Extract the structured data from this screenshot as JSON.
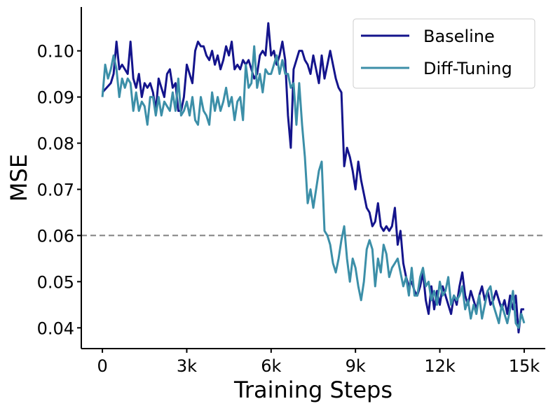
{
  "chart_data": {
    "type": "line",
    "title": "",
    "xlabel": "Training Steps",
    "ylabel": "MSE",
    "xlim": [
      -750,
      15750
    ],
    "ylim": [
      0.0355,
      0.1095
    ],
    "x_ticks": [
      {
        "value": 0,
        "label": "0"
      },
      {
        "value": 3000,
        "label": "3k"
      },
      {
        "value": 6000,
        "label": "6k"
      },
      {
        "value": 9000,
        "label": "9k"
      },
      {
        "value": 12000,
        "label": "12k"
      },
      {
        "value": 15000,
        "label": "15k"
      }
    ],
    "y_ticks": [
      {
        "value": 0.04,
        "label": "0.04"
      },
      {
        "value": 0.05,
        "label": "0.05"
      },
      {
        "value": 0.06,
        "label": "0.06"
      },
      {
        "value": 0.07,
        "label": "0.07"
      },
      {
        "value": 0.08,
        "label": "0.08"
      },
      {
        "value": 0.09,
        "label": "0.09"
      },
      {
        "value": 0.1,
        "label": "0.10"
      }
    ],
    "reference_line": {
      "y": 0.06,
      "style": "dashed",
      "color": "#808080"
    },
    "grid": false,
    "legend_position": "top-right",
    "series": [
      {
        "name": "Baseline",
        "color": "#14148c",
        "points": [
          [
            0,
            0.091
          ],
          [
            150,
            0.092
          ],
          [
            300,
            0.093
          ],
          [
            400,
            0.095
          ],
          [
            500,
            0.102
          ],
          [
            600,
            0.096
          ],
          [
            700,
            0.097
          ],
          [
            800,
            0.096
          ],
          [
            900,
            0.095
          ],
          [
            1000,
            0.102
          ],
          [
            1100,
            0.094
          ],
          [
            1200,
            0.092
          ],
          [
            1300,
            0.095
          ],
          [
            1400,
            0.09
          ],
          [
            1500,
            0.093
          ],
          [
            1600,
            0.092
          ],
          [
            1700,
            0.093
          ],
          [
            1800,
            0.091
          ],
          [
            1900,
            0.087
          ],
          [
            2000,
            0.094
          ],
          [
            2100,
            0.092
          ],
          [
            2200,
            0.09
          ],
          [
            2300,
            0.095
          ],
          [
            2400,
            0.096
          ],
          [
            2500,
            0.092
          ],
          [
            2600,
            0.093
          ],
          [
            2700,
            0.087
          ],
          [
            2800,
            0.087
          ],
          [
            2900,
            0.09
          ],
          [
            3000,
            0.097
          ],
          [
            3100,
            0.095
          ],
          [
            3200,
            0.093
          ],
          [
            3300,
            0.1
          ],
          [
            3400,
            0.102
          ],
          [
            3500,
            0.101
          ],
          [
            3600,
            0.101
          ],
          [
            3700,
            0.099
          ],
          [
            3800,
            0.098
          ],
          [
            3900,
            0.1
          ],
          [
            4000,
            0.097
          ],
          [
            4100,
            0.099
          ],
          [
            4200,
            0.096
          ],
          [
            4300,
            0.098
          ],
          [
            4400,
            0.101
          ],
          [
            4500,
            0.099
          ],
          [
            4600,
            0.102
          ],
          [
            4700,
            0.096
          ],
          [
            4800,
            0.097
          ],
          [
            4900,
            0.096
          ],
          [
            5000,
            0.098
          ],
          [
            5100,
            0.097
          ],
          [
            5200,
            0.098
          ],
          [
            5300,
            0.096
          ],
          [
            5400,
            0.094
          ],
          [
            5500,
            0.095
          ],
          [
            5600,
            0.099
          ],
          [
            5700,
            0.1
          ],
          [
            5800,
            0.099
          ],
          [
            5900,
            0.106
          ],
          [
            6000,
            0.099
          ],
          [
            6100,
            0.1
          ],
          [
            6200,
            0.097
          ],
          [
            6300,
            0.099
          ],
          [
            6400,
            0.102
          ],
          [
            6500,
            0.098
          ],
          [
            6600,
            0.086
          ],
          [
            6700,
            0.079
          ],
          [
            6800,
            0.096
          ],
          [
            6900,
            0.098
          ],
          [
            7000,
            0.1
          ],
          [
            7100,
            0.1
          ],
          [
            7200,
            0.098
          ],
          [
            7300,
            0.097
          ],
          [
            7400,
            0.095
          ],
          [
            7500,
            0.099
          ],
          [
            7600,
            0.096
          ],
          [
            7700,
            0.093
          ],
          [
            7800,
            0.099
          ],
          [
            7900,
            0.094
          ],
          [
            8000,
            0.097
          ],
          [
            8100,
            0.1
          ],
          [
            8200,
            0.097
          ],
          [
            8300,
            0.094
          ],
          [
            8400,
            0.092
          ],
          [
            8500,
            0.091
          ],
          [
            8600,
            0.075
          ],
          [
            8700,
            0.079
          ],
          [
            8800,
            0.077
          ],
          [
            8900,
            0.074
          ],
          [
            9000,
            0.07
          ],
          [
            9100,
            0.076
          ],
          [
            9200,
            0.072
          ],
          [
            9300,
            0.069
          ],
          [
            9400,
            0.066
          ],
          [
            9500,
            0.065
          ],
          [
            9600,
            0.062
          ],
          [
            9700,
            0.063
          ],
          [
            9800,
            0.067
          ],
          [
            9900,
            0.062
          ],
          [
            10000,
            0.061
          ],
          [
            10100,
            0.062
          ],
          [
            10200,
            0.061
          ],
          [
            10300,
            0.062
          ],
          [
            10400,
            0.066
          ],
          [
            10500,
            0.058
          ],
          [
            10600,
            0.061
          ],
          [
            10700,
            0.054
          ],
          [
            10800,
            0.051
          ],
          [
            10900,
            0.049
          ],
          [
            11000,
            0.05
          ],
          [
            11100,
            0.048
          ],
          [
            11200,
            0.047
          ],
          [
            11300,
            0.049
          ],
          [
            11400,
            0.052
          ],
          [
            11500,
            0.046
          ],
          [
            11600,
            0.043
          ],
          [
            11700,
            0.049
          ],
          [
            11800,
            0.044
          ],
          [
            11900,
            0.048
          ],
          [
            12000,
            0.045
          ],
          [
            12100,
            0.049
          ],
          [
            12200,
            0.047
          ],
          [
            12300,
            0.045
          ],
          [
            12400,
            0.043
          ],
          [
            12500,
            0.047
          ],
          [
            12600,
            0.045
          ],
          [
            12700,
            0.049
          ],
          [
            12800,
            0.052
          ],
          [
            12900,
            0.047
          ],
          [
            13000,
            0.045
          ],
          [
            13100,
            0.048
          ],
          [
            13200,
            0.046
          ],
          [
            13300,
            0.044
          ],
          [
            13400,
            0.047
          ],
          [
            13500,
            0.049
          ],
          [
            13600,
            0.046
          ],
          [
            13700,
            0.048
          ],
          [
            13800,
            0.045
          ],
          [
            13900,
            0.046
          ],
          [
            14000,
            0.048
          ],
          [
            14100,
            0.046
          ],
          [
            14200,
            0.044
          ],
          [
            14300,
            0.046
          ],
          [
            14400,
            0.043
          ],
          [
            14500,
            0.047
          ],
          [
            14600,
            0.044
          ],
          [
            14700,
            0.047
          ],
          [
            14800,
            0.039
          ],
          [
            14900,
            0.044
          ],
          [
            15000,
            0.044
          ]
        ]
      },
      {
        "name": "Diff-Tuning",
        "color": "#3c8fa8",
        "points": [
          [
            0,
            0.09
          ],
          [
            100,
            0.097
          ],
          [
            200,
            0.094
          ],
          [
            300,
            0.096
          ],
          [
            400,
            0.099
          ],
          [
            500,
            0.096
          ],
          [
            600,
            0.09
          ],
          [
            700,
            0.094
          ],
          [
            800,
            0.092
          ],
          [
            900,
            0.094
          ],
          [
            1000,
            0.093
          ],
          [
            1100,
            0.087
          ],
          [
            1200,
            0.091
          ],
          [
            1300,
            0.087
          ],
          [
            1400,
            0.089
          ],
          [
            1500,
            0.088
          ],
          [
            1600,
            0.084
          ],
          [
            1700,
            0.09
          ],
          [
            1800,
            0.09
          ],
          [
            1900,
            0.086
          ],
          [
            2000,
            0.09
          ],
          [
            2100,
            0.086
          ],
          [
            2200,
            0.089
          ],
          [
            2300,
            0.088
          ],
          [
            2400,
            0.087
          ],
          [
            2500,
            0.091
          ],
          [
            2600,
            0.087
          ],
          [
            2700,
            0.094
          ],
          [
            2800,
            0.086
          ],
          [
            2900,
            0.087
          ],
          [
            3000,
            0.089
          ],
          [
            3100,
            0.086
          ],
          [
            3200,
            0.09
          ],
          [
            3300,
            0.085
          ],
          [
            3400,
            0.084
          ],
          [
            3500,
            0.09
          ],
          [
            3600,
            0.087
          ],
          [
            3700,
            0.086
          ],
          [
            3800,
            0.084
          ],
          [
            3900,
            0.091
          ],
          [
            4000,
            0.087
          ],
          [
            4100,
            0.09
          ],
          [
            4200,
            0.087
          ],
          [
            4300,
            0.089
          ],
          [
            4400,
            0.092
          ],
          [
            4500,
            0.088
          ],
          [
            4600,
            0.09
          ],
          [
            4700,
            0.085
          ],
          [
            4800,
            0.089
          ],
          [
            4900,
            0.09
          ],
          [
            5000,
            0.085
          ],
          [
            5100,
            0.097
          ],
          [
            5200,
            0.092
          ],
          [
            5300,
            0.093
          ],
          [
            5400,
            0.101
          ],
          [
            5500,
            0.092
          ],
          [
            5600,
            0.095
          ],
          [
            5700,
            0.091
          ],
          [
            5800,
            0.096
          ],
          [
            5900,
            0.095
          ],
          [
            6000,
            0.095
          ],
          [
            6100,
            0.097
          ],
          [
            6200,
            0.099
          ],
          [
            6300,
            0.095
          ],
          [
            6400,
            0.098
          ],
          [
            6500,
            0.095
          ],
          [
            6600,
            0.095
          ],
          [
            6700,
            0.092
          ],
          [
            6800,
            0.093
          ],
          [
            6900,
            0.084
          ],
          [
            7000,
            0.093
          ],
          [
            7100,
            0.084
          ],
          [
            7200,
            0.077
          ],
          [
            7300,
            0.067
          ],
          [
            7400,
            0.07
          ],
          [
            7500,
            0.066
          ],
          [
            7600,
            0.07
          ],
          [
            7700,
            0.074
          ],
          [
            7800,
            0.076
          ],
          [
            7900,
            0.061
          ],
          [
            8000,
            0.06
          ],
          [
            8100,
            0.058
          ],
          [
            8200,
            0.054
          ],
          [
            8300,
            0.052
          ],
          [
            8400,
            0.055
          ],
          [
            8500,
            0.059
          ],
          [
            8600,
            0.062
          ],
          [
            8700,
            0.055
          ],
          [
            8800,
            0.05
          ],
          [
            8900,
            0.055
          ],
          [
            9000,
            0.053
          ],
          [
            9100,
            0.049
          ],
          [
            9200,
            0.046
          ],
          [
            9300,
            0.05
          ],
          [
            9400,
            0.057
          ],
          [
            9500,
            0.059
          ],
          [
            9600,
            0.057
          ],
          [
            9700,
            0.049
          ],
          [
            9800,
            0.055
          ],
          [
            9900,
            0.052
          ],
          [
            10000,
            0.058
          ],
          [
            10100,
            0.056
          ],
          [
            10200,
            0.051
          ],
          [
            10300,
            0.053
          ],
          [
            10400,
            0.054
          ],
          [
            10500,
            0.055
          ],
          [
            10600,
            0.052
          ],
          [
            10700,
            0.049
          ],
          [
            10800,
            0.051
          ],
          [
            10900,
            0.047
          ],
          [
            11000,
            0.053
          ],
          [
            11100,
            0.047
          ],
          [
            11200,
            0.047
          ],
          [
            11300,
            0.051
          ],
          [
            11400,
            0.053
          ],
          [
            11500,
            0.049
          ],
          [
            11600,
            0.05
          ],
          [
            11700,
            0.046
          ],
          [
            11800,
            0.048
          ],
          [
            11900,
            0.045
          ],
          [
            12000,
            0.05
          ],
          [
            12100,
            0.047
          ],
          [
            12200,
            0.048
          ],
          [
            12300,
            0.051
          ],
          [
            12400,
            0.045
          ],
          [
            12500,
            0.047
          ],
          [
            12600,
            0.046
          ],
          [
            12700,
            0.047
          ],
          [
            12800,
            0.049
          ],
          [
            12900,
            0.044
          ],
          [
            13000,
            0.046
          ],
          [
            13100,
            0.042
          ],
          [
            13200,
            0.045
          ],
          [
            13300,
            0.043
          ],
          [
            13400,
            0.047
          ],
          [
            13500,
            0.042
          ],
          [
            13600,
            0.045
          ],
          [
            13700,
            0.048
          ],
          [
            13800,
            0.049
          ],
          [
            13900,
            0.045
          ],
          [
            14000,
            0.043
          ],
          [
            14100,
            0.041
          ],
          [
            14200,
            0.045
          ],
          [
            14300,
            0.043
          ],
          [
            14400,
            0.041
          ],
          [
            14500,
            0.044
          ],
          [
            14600,
            0.048
          ],
          [
            14700,
            0.041
          ],
          [
            14800,
            0.04
          ],
          [
            14900,
            0.043
          ],
          [
            15000,
            0.041
          ]
        ]
      }
    ]
  }
}
